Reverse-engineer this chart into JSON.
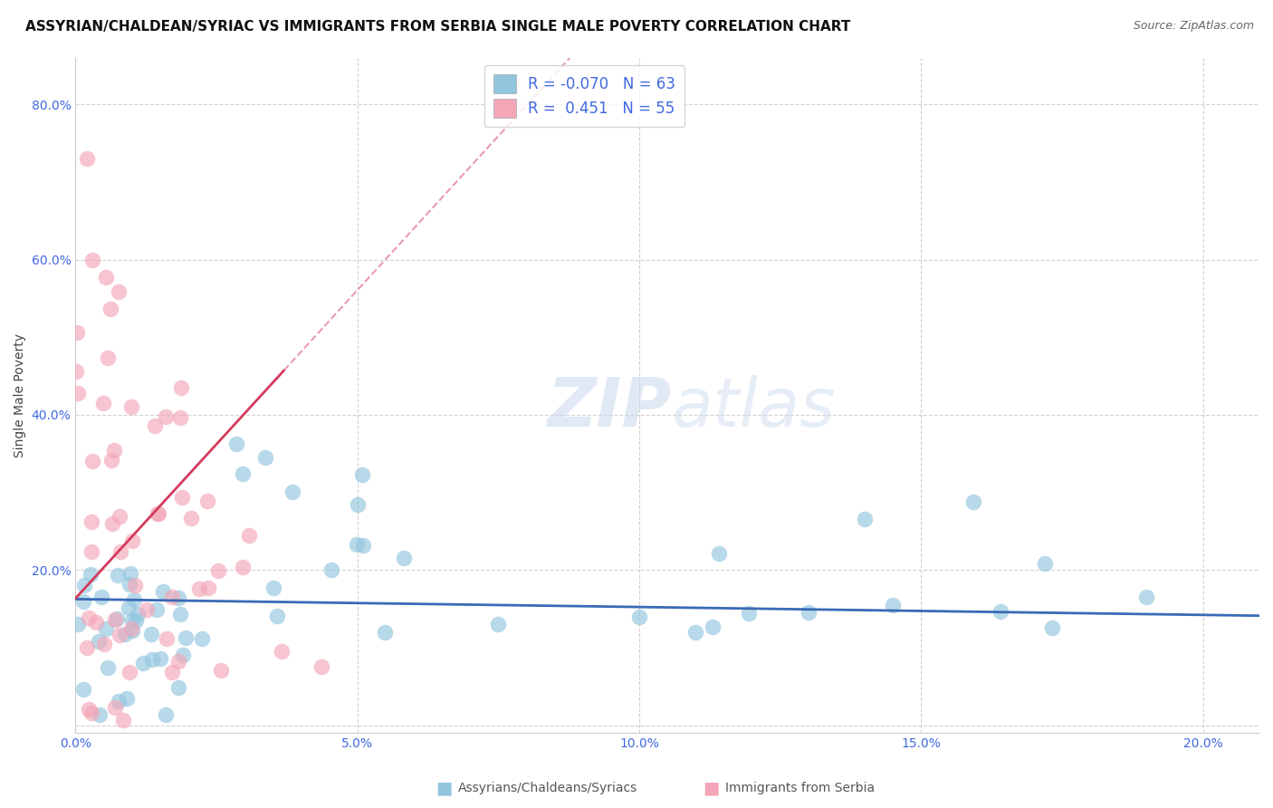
{
  "title": "ASSYRIAN/CHALDEAN/SYRIAC VS IMMIGRANTS FROM SERBIA SINGLE MALE POVERTY CORRELATION CHART",
  "source": "Source: ZipAtlas.com",
  "xlabel": "",
  "ylabel": "Single Male Poverty",
  "watermark_zip": "ZIP",
  "watermark_atlas": "atlas",
  "legend_blue_R": "-0.070",
  "legend_blue_N": "63",
  "legend_pink_R": "0.451",
  "legend_pink_N": "55",
  "legend_label_blue": "Assyrians/Chaldeans/Syriacs",
  "legend_label_pink": "Immigrants from Serbia",
  "xlim": [
    0.0,
    0.21
  ],
  "ylim": [
    -0.01,
    0.86
  ],
  "xticks": [
    0.0,
    0.05,
    0.1,
    0.15,
    0.2
  ],
  "yticks": [
    0.0,
    0.2,
    0.4,
    0.6,
    0.8
  ],
  "xtick_labels": [
    "0.0%",
    "5.0%",
    "10.0%",
    "15.0%",
    "20.0%"
  ],
  "ytick_labels": [
    "",
    "20.0%",
    "40.0%",
    "60.0%",
    "80.0%"
  ],
  "blue_color": "#92c5de",
  "pink_color": "#f4a6b8",
  "trend_blue_color": "#3a6ab5",
  "trend_pink_color": "#d43a5c",
  "background_color": "#ffffff",
  "grid_color": "#cccccc",
  "title_fontsize": 11,
  "axis_label_fontsize": 10,
  "tick_fontsize": 10,
  "legend_fontsize": 12,
  "source_fontsize": 9
}
